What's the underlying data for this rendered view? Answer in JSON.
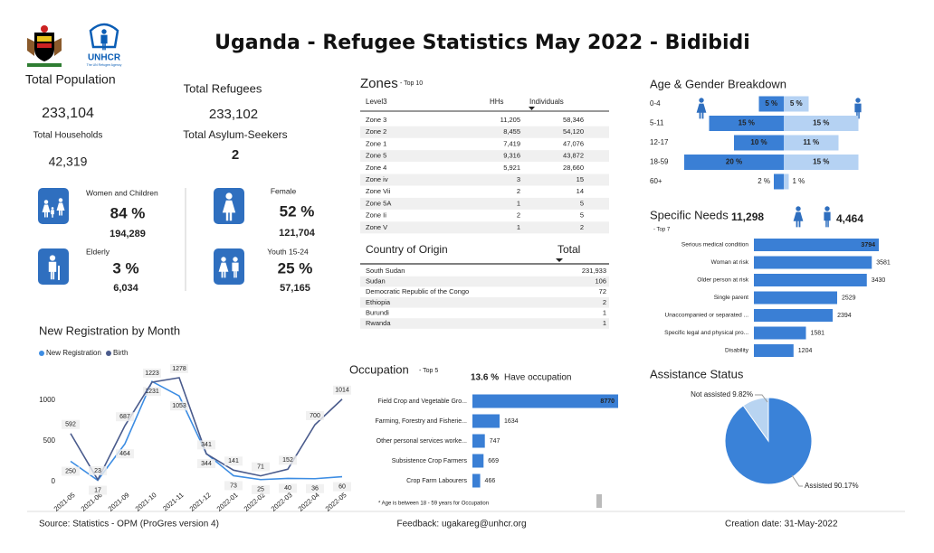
{
  "header": {
    "title": "Uganda - Refugee Statistics May 2022 - Bidibidi",
    "logo_text": "UNHCR",
    "logo_tagline": "The UN Refugee Agency"
  },
  "summary": {
    "total_population": {
      "label": "Total Population",
      "value": "233,104"
    },
    "total_households": {
      "label": "Total Households",
      "value": "42,319"
    },
    "total_refugees": {
      "label": "Total Refugees",
      "value": "233,102"
    },
    "asylum_seekers": {
      "label": "Total Asylum-Seekers",
      "value": "2"
    }
  },
  "demographics": [
    {
      "label": "Women and Children",
      "percent": "84 %",
      "count": "194,289"
    },
    {
      "label": "Female",
      "percent": "52 %",
      "count": "121,704"
    },
    {
      "label": "Elderly",
      "percent": "3 %",
      "count": "6,034"
    },
    {
      "label": "Youth 15-24",
      "percent": "25 %",
      "count": "57,165"
    }
  ],
  "zones": {
    "title": "Zones",
    "subtitle": "- Top 10",
    "columns": [
      "Level3",
      "HHs",
      "Individuals"
    ],
    "rows": [
      [
        "Zone 3",
        "11,205",
        "58,346"
      ],
      [
        "Zone 2",
        "8,455",
        "54,120"
      ],
      [
        "Zone 1",
        "7,419",
        "47,076"
      ],
      [
        "Zone 5",
        "9,316",
        "43,872"
      ],
      [
        "Zone 4",
        "5,921",
        "28,660"
      ],
      [
        "Zone iv",
        "3",
        "15"
      ],
      [
        "Zone Vii",
        "2",
        "14"
      ],
      [
        "Zone 5A",
        "1",
        "5"
      ],
      [
        "Zone Ii",
        "2",
        "5"
      ],
      [
        "Zone V",
        "1",
        "2"
      ]
    ]
  },
  "origin": {
    "columns": [
      "Country of Origin",
      "Total"
    ],
    "rows": [
      [
        "South Sudan",
        "231,933"
      ],
      [
        "Sudan",
        "106"
      ],
      [
        "Democratic Republic of the Congo",
        "72"
      ],
      [
        "Ethiopia",
        "2"
      ],
      [
        "Burundi",
        "1"
      ],
      [
        "Rwanda",
        "1"
      ]
    ]
  },
  "chart_data": [
    {
      "type": "butterfly",
      "title": "Age & Gender Breakdown",
      "categories": [
        "0-4",
        "5-11",
        "12-17",
        "18-59",
        "60+"
      ],
      "series": [
        {
          "color": "#3a7fd5",
          "values": [
            5,
            15,
            10,
            20,
            2
          ],
          "value_labels": [
            "5 %",
            "15 %",
            "10 %",
            "20 %",
            "2 %"
          ]
        },
        {
          "color": "#b5d2f3",
          "values": [
            5,
            15,
            11,
            15,
            1
          ],
          "value_labels": [
            "5 %",
            "15 %",
            "11 %",
            "15 %",
            "1 %"
          ]
        }
      ]
    },
    {
      "type": "barh",
      "title": "Specific Needs",
      "subtitle": "- Top 7",
      "female_total": "11,298",
      "male_total": "4,464",
      "color": "#3a7fd5",
      "categories": [
        "Serious medical condition",
        "Woman at risk",
        "Older person at risk",
        "Single parent",
        "Unaccompanied or separated ...",
        "Specific legal and physical pro...",
        "Disability"
      ],
      "values": [
        3794,
        3581,
        3430,
        2529,
        2394,
        1581,
        1204
      ]
    },
    {
      "type": "line",
      "title": "New Registration by Month",
      "categories": [
        "2021-05",
        "2021-06",
        "2021-09",
        "2021-10",
        "2021-11",
        "2021-12",
        "2022-01",
        "2022-02",
        "2022-03",
        "2022-04",
        "2022-05"
      ],
      "ylim": [
        0,
        1300
      ],
      "yticks": [
        0,
        500,
        1000
      ],
      "series": [
        {
          "name": "New Registration",
          "color": "#3d8de3",
          "values": [
            250,
            17,
            464,
            1231,
            1053,
            344,
            73,
            25,
            40,
            36,
            60
          ]
        },
        {
          "name": "Birth",
          "color": "#4a5b8c",
          "values": [
            592,
            23,
            687,
            1223,
            1278,
            341,
            141,
            71,
            152,
            700,
            1014
          ]
        }
      ]
    },
    {
      "type": "barh",
      "title": "Occupation",
      "subtitle": "- Top 5",
      "share": "13.6 %",
      "share_label": "Have occupation",
      "note": "* Age is between 18 - 59 years for Occupation",
      "color": "#3a7fd5",
      "categories": [
        "Field Crop and Vegetable Gro...",
        "Farming, Forestry and Fisherie...",
        "Other personal services worke...",
        "Subsistence Crop Farmers",
        "Crop Farm Labourers"
      ],
      "values": [
        8770,
        1634,
        747,
        669,
        466
      ]
    },
    {
      "type": "pie",
      "title": "Assistance Status",
      "values": [
        9.82,
        90.17
      ],
      "value_labels": [
        "Not assisted 9.82%",
        "Assisted 90.17%"
      ],
      "colors": [
        "#b8d4f1",
        "#3a82d8"
      ]
    }
  ],
  "footer": {
    "source": "Source: Statistics - OPM (ProGres version 4)",
    "feedback": "Feedback: ugakareg@unhcr.org",
    "created": "Creation date: 31-May-2022"
  }
}
